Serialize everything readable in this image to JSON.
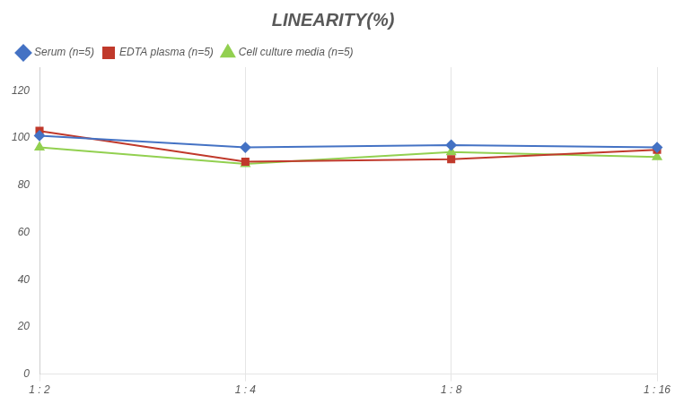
{
  "chart_data": {
    "type": "line",
    "title": "LINEARITY(%)",
    "categories": [
      "1 : 2",
      "1 : 4",
      "1 : 8",
      "1 : 16"
    ],
    "series": [
      {
        "name": "Serum (n=5)",
        "color": "#4472C4",
        "marker": "diamond",
        "values": [
          101,
          96,
          97,
          96
        ]
      },
      {
        "name": "EDTA plasma (n=5)",
        "color": "#C0392B",
        "marker": "square",
        "values": [
          103,
          90,
          91,
          95
        ]
      },
      {
        "name": "Cell culture media (n=5)",
        "color": "#92D050",
        "marker": "triangle",
        "values": [
          96,
          89,
          94,
          92
        ]
      }
    ],
    "ylim": [
      0,
      130
    ],
    "yticks": [
      0,
      20,
      40,
      60,
      80,
      100,
      120
    ],
    "grid": "x",
    "legend": "top"
  }
}
